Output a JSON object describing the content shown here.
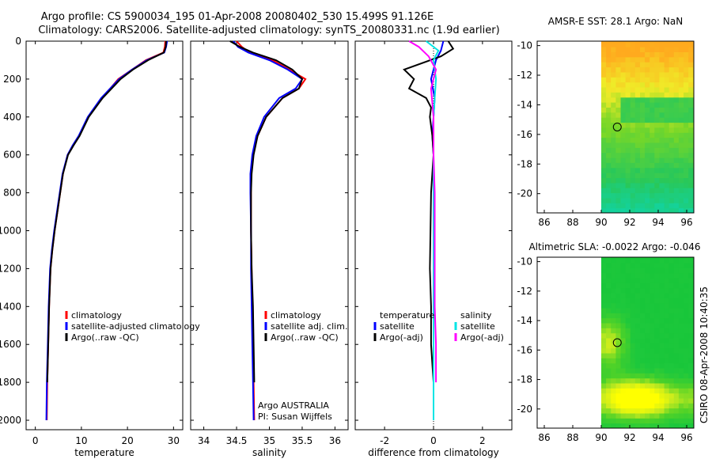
{
  "header": {
    "line1": "Argo profile: CS 5900034_195 01-Apr-2008 20080402_530 15.499S 91.126E",
    "line2": "Climatology: CARS2006. Satellite-adjusted climatology: synTS_20080331.nc (1.9d earlier)"
  },
  "side_label": "CSIRO 08-Apr-2008 10:40:35",
  "colors": {
    "climatology": "#ff0000",
    "satellite": "#0000ff",
    "argo": "#000000",
    "salinity_sat": "#00e5e5",
    "salinity_argo": "#ff00ff"
  },
  "chart_data": [
    {
      "type": "line",
      "id": "temperature",
      "xlabel": "temperature",
      "ylabel": "depth",
      "xlim": [
        -2,
        32
      ],
      "ylim": [
        0,
        2050
      ],
      "y_inverted": true,
      "xticks": [
        0,
        10,
        20,
        30
      ],
      "yticks": [
        0,
        200,
        400,
        600,
        800,
        1000,
        1200,
        1400,
        1600,
        1800,
        2000
      ],
      "series": [
        {
          "name": "climatology",
          "color": "#ff0000",
          "x": [
            28.2,
            28.1,
            27.8,
            24,
            21,
            18,
            14.5,
            11.5,
            9.5,
            8.2,
            7,
            6,
            5.4,
            4.8,
            4.2,
            3.7,
            3.3,
            3,
            2.8,
            2.6,
            2.5
          ],
          "y": [
            0,
            30,
            60,
            100,
            150,
            200,
            300,
            400,
            500,
            550,
            600,
            700,
            800,
            900,
            1000,
            1100,
            1200,
            1400,
            1600,
            1800,
            2000
          ]
        },
        {
          "name": "satellite-adjusted climatology",
          "color": "#0000ff",
          "x": [
            28.6,
            28.4,
            28,
            24.2,
            21,
            18.2,
            14.3,
            11.4,
            9.4,
            8.1,
            7,
            5.9,
            5.3,
            4.7,
            4.1,
            3.6,
            3.2,
            2.9,
            2.7,
            2.5,
            2.4
          ],
          "y": [
            0,
            30,
            60,
            100,
            150,
            200,
            300,
            400,
            500,
            550,
            600,
            700,
            800,
            900,
            1000,
            1100,
            1200,
            1400,
            1600,
            1800,
            2000
          ]
        },
        {
          "name": "Argo(..raw -QC)",
          "color": "#000000",
          "x": [
            28.4,
            28.3,
            27.9,
            24.5,
            21.2,
            18.5,
            14.6,
            11.6,
            9.6,
            8.3,
            7.1,
            6,
            5.4,
            4.8,
            4.2,
            3.7,
            3.3,
            3,
            2.8,
            2.6
          ],
          "y": [
            0,
            30,
            60,
            100,
            150,
            200,
            300,
            400,
            500,
            550,
            600,
            700,
            800,
            900,
            1000,
            1100,
            1200,
            1400,
            1600,
            1800
          ]
        }
      ],
      "legend": [
        "climatology",
        "satellite-adjusted climatology",
        "Argo(..raw -QC)"
      ]
    },
    {
      "type": "line",
      "id": "salinity",
      "xlabel": "salinity",
      "ylabel": "depth",
      "xlim": [
        33.8,
        36.2
      ],
      "ylim": [
        0,
        2050
      ],
      "y_inverted": true,
      "xticks": [
        34,
        34.5,
        35,
        35.5,
        36
      ],
      "series": [
        {
          "name": "climatology",
          "color": "#ff0000",
          "x": [
            34.5,
            34.58,
            34.7,
            35.05,
            35.3,
            35.55,
            35.45,
            35.2,
            34.95,
            34.82,
            34.75,
            34.72,
            34.72,
            34.72,
            34.73,
            34.74,
            34.75,
            34.76,
            34.77
          ],
          "y": [
            0,
            30,
            60,
            100,
            150,
            200,
            250,
            300,
            400,
            500,
            600,
            700,
            800,
            1000,
            1200,
            1400,
            1600,
            1800,
            2000
          ]
        },
        {
          "name": "satellite adj. clim.",
          "color": "#0000ff",
          "x": [
            34.45,
            34.52,
            34.68,
            35,
            35.28,
            35.5,
            35.4,
            35.15,
            34.92,
            34.8,
            34.74,
            34.71,
            34.71,
            34.72,
            34.72,
            34.73,
            34.74,
            34.75,
            34.76
          ],
          "y": [
            0,
            30,
            60,
            100,
            150,
            200,
            250,
            300,
            400,
            500,
            600,
            700,
            800,
            1000,
            1200,
            1400,
            1600,
            1800,
            2000
          ]
        },
        {
          "name": "Argo(..raw -QC)",
          "color": "#000000",
          "x": [
            34.4,
            34.55,
            34.75,
            35.1,
            35.35,
            35.5,
            35.45,
            35.2,
            34.95,
            34.82,
            34.76,
            34.73,
            34.72,
            34.72,
            34.73,
            34.75,
            34.76,
            34.77
          ],
          "y": [
            0,
            30,
            60,
            100,
            150,
            200,
            250,
            300,
            400,
            500,
            600,
            700,
            800,
            1000,
            1200,
            1400,
            1600,
            1800
          ]
        }
      ],
      "legend": [
        "climatology",
        "satellite adj. clim.",
        "Argo(..raw -QC)"
      ],
      "annotations": [
        "Argo AUSTRALIA",
        "PI: Susan Wijffels"
      ]
    },
    {
      "type": "line",
      "id": "difference",
      "xlabel": "difference from climatology",
      "ylabel": "depth",
      "xlim": [
        -3.2,
        3.2
      ],
      "ylim": [
        0,
        2050
      ],
      "y_inverted": true,
      "xticks": [
        -2,
        0,
        2
      ],
      "series": [
        {
          "name": "temperature satellite",
          "color": "#0000ff",
          "x": [
            0.4,
            0.3,
            0.1,
            -0.1,
            0.05,
            0,
            -0.05,
            0,
            0,
            0,
            0,
            0,
            0,
            0,
            0
          ],
          "y": [
            0,
            50,
            100,
            200,
            300,
            400,
            500,
            600,
            800,
            1000,
            1200,
            1400,
            1600,
            1800,
            2000
          ]
        },
        {
          "name": "temperature Argo(-adj)",
          "color": "#000000",
          "x": [
            0.6,
            0.8,
            0.3,
            -1.2,
            -0.8,
            -1,
            -0.3,
            -0.1,
            -0.15,
            -0.05,
            0,
            -0.1,
            -0.15,
            -0.1,
            -0.1,
            0
          ],
          "y": [
            0,
            40,
            80,
            150,
            200,
            250,
            300,
            350,
            400,
            500,
            600,
            800,
            1200,
            1400,
            1600,
            1800
          ]
        },
        {
          "name": "salinity satellite",
          "color": "#00e5e5",
          "x": [
            -0.3,
            0.2,
            0,
            0.1,
            0.05,
            0,
            0,
            0,
            0,
            0,
            0,
            0
          ],
          "y": [
            0,
            50,
            100,
            200,
            300,
            400,
            600,
            800,
            1200,
            1400,
            1600,
            2000
          ]
        },
        {
          "name": "salinity Argo(-adj)",
          "color": "#ff00ff",
          "x": [
            -1,
            -0.6,
            -0.2,
            0.1,
            -0.1,
            0,
            0,
            0.05,
            0.05,
            0.05,
            0.1,
            0.1
          ],
          "y": [
            0,
            30,
            80,
            150,
            250,
            400,
            600,
            800,
            1200,
            1400,
            1600,
            1800
          ]
        }
      ],
      "legend_temperature": {
        "title": "temperature",
        "items": [
          "satellite",
          "Argo(-adj)"
        ]
      },
      "legend_salinity": {
        "title": "salinity",
        "items": [
          "satellite",
          "Argo(-adj)"
        ]
      }
    },
    {
      "type": "heatmap",
      "id": "sst_map",
      "title": "AMSR-E SST: 28.1 Argo: NaN",
      "xlim": [
        85.5,
        96.5
      ],
      "ylim": [
        -21.3,
        -9.7
      ],
      "xticks": [
        86,
        88,
        90,
        92,
        94,
        96
      ],
      "yticks": [
        -10,
        -12,
        -14,
        -16,
        -18,
        -20
      ],
      "data_lon_start": 90,
      "marker": {
        "lon": 91.126,
        "lat": -15.499
      }
    },
    {
      "type": "heatmap",
      "id": "sla_map",
      "title": "Altimetric SLA: -0.0022 Argo: -0.046",
      "xlim": [
        85.5,
        96.5
      ],
      "ylim": [
        -21.3,
        -9.7
      ],
      "xticks": [
        86,
        88,
        90,
        92,
        94,
        96
      ],
      "yticks": [
        -10,
        -12,
        -14,
        -16,
        -18,
        -20
      ],
      "data_lon_start": 90,
      "marker": {
        "lon": 91.126,
        "lat": -15.499
      }
    }
  ]
}
